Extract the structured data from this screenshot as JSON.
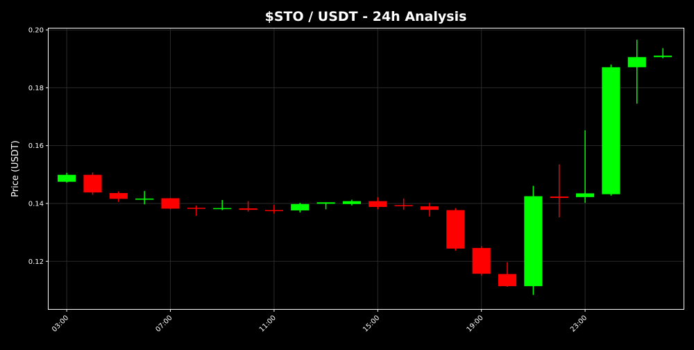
{
  "chart_data": {
    "type": "candlestick",
    "title": "$STO / USDT - 24h Analysis",
    "xlabel": "",
    "ylabel": "Price (USDT)",
    "ylim": [
      0.1035,
      0.2005
    ],
    "xlim": [
      2.3,
      26.8
    ],
    "grid": true,
    "up_color": "#00ff00",
    "down_color": "#ff0000",
    "background": "#000000",
    "yticks": [
      0.12,
      0.14,
      0.16,
      0.18,
      0.2
    ],
    "ytick_labels": [
      "0.12",
      "0.14",
      "0.16",
      "0.18",
      "0.20"
    ],
    "xticks": [
      3,
      7,
      11,
      15,
      19,
      23
    ],
    "xtick_labels": [
      "03:00",
      "07:00",
      "11:00",
      "15:00",
      "19:00",
      "23:00"
    ],
    "candles": [
      {
        "t": 3,
        "open": 0.1475,
        "high": 0.1506,
        "low": 0.1472,
        "close": 0.1499
      },
      {
        "t": 4,
        "open": 0.1499,
        "high": 0.1507,
        "low": 0.143,
        "close": 0.1438
      },
      {
        "t": 5,
        "open": 0.1436,
        "high": 0.1442,
        "low": 0.1405,
        "close": 0.1416
      },
      {
        "t": 6,
        "open": 0.1413,
        "high": 0.1443,
        "low": 0.1397,
        "close": 0.1417
      },
      {
        "t": 7,
        "open": 0.1418,
        "high": 0.1419,
        "low": 0.138,
        "close": 0.1382
      },
      {
        "t": 8,
        "open": 0.1385,
        "high": 0.1393,
        "low": 0.1357,
        "close": 0.1383
      },
      {
        "t": 9,
        "open": 0.1381,
        "high": 0.1412,
        "low": 0.1377,
        "close": 0.1384
      },
      {
        "t": 10,
        "open": 0.1383,
        "high": 0.1408,
        "low": 0.1372,
        "close": 0.1378
      },
      {
        "t": 11,
        "open": 0.1377,
        "high": 0.1395,
        "low": 0.1365,
        "close": 0.1374
      },
      {
        "t": 12,
        "open": 0.1376,
        "high": 0.1402,
        "low": 0.1369,
        "close": 0.1398
      },
      {
        "t": 13,
        "open": 0.1399,
        "high": 0.1404,
        "low": 0.138,
        "close": 0.1404
      },
      {
        "t": 14,
        "open": 0.1398,
        "high": 0.1413,
        "low": 0.1393,
        "close": 0.1408
      },
      {
        "t": 15,
        "open": 0.1408,
        "high": 0.1421,
        "low": 0.138,
        "close": 0.1388
      },
      {
        "t": 16,
        "open": 0.1394,
        "high": 0.1417,
        "low": 0.1378,
        "close": 0.1391
      },
      {
        "t": 17,
        "open": 0.139,
        "high": 0.1402,
        "low": 0.1355,
        "close": 0.1378
      },
      {
        "t": 18,
        "open": 0.1377,
        "high": 0.1384,
        "low": 0.1237,
        "close": 0.1244
      },
      {
        "t": 19,
        "open": 0.1246,
        "high": 0.1252,
        "low": 0.1151,
        "close": 0.1157
      },
      {
        "t": 20,
        "open": 0.1156,
        "high": 0.1197,
        "low": 0.1112,
        "close": 0.1114
      },
      {
        "t": 21,
        "open": 0.1114,
        "high": 0.1461,
        "low": 0.1084,
        "close": 0.1425
      },
      {
        "t": 22,
        "open": 0.1424,
        "high": 0.1535,
        "low": 0.1352,
        "close": 0.1419
      },
      {
        "t": 23,
        "open": 0.1422,
        "high": 0.1653,
        "low": 0.1402,
        "close": 0.1435
      },
      {
        "t": 24,
        "open": 0.1432,
        "high": 0.188,
        "low": 0.1427,
        "close": 0.1871
      },
      {
        "t": 25,
        "open": 0.1871,
        "high": 0.1966,
        "low": 0.1745,
        "close": 0.1906
      },
      {
        "t": 26,
        "open": 0.1906,
        "high": 0.1937,
        "low": 0.1902,
        "close": 0.1911
      }
    ]
  }
}
